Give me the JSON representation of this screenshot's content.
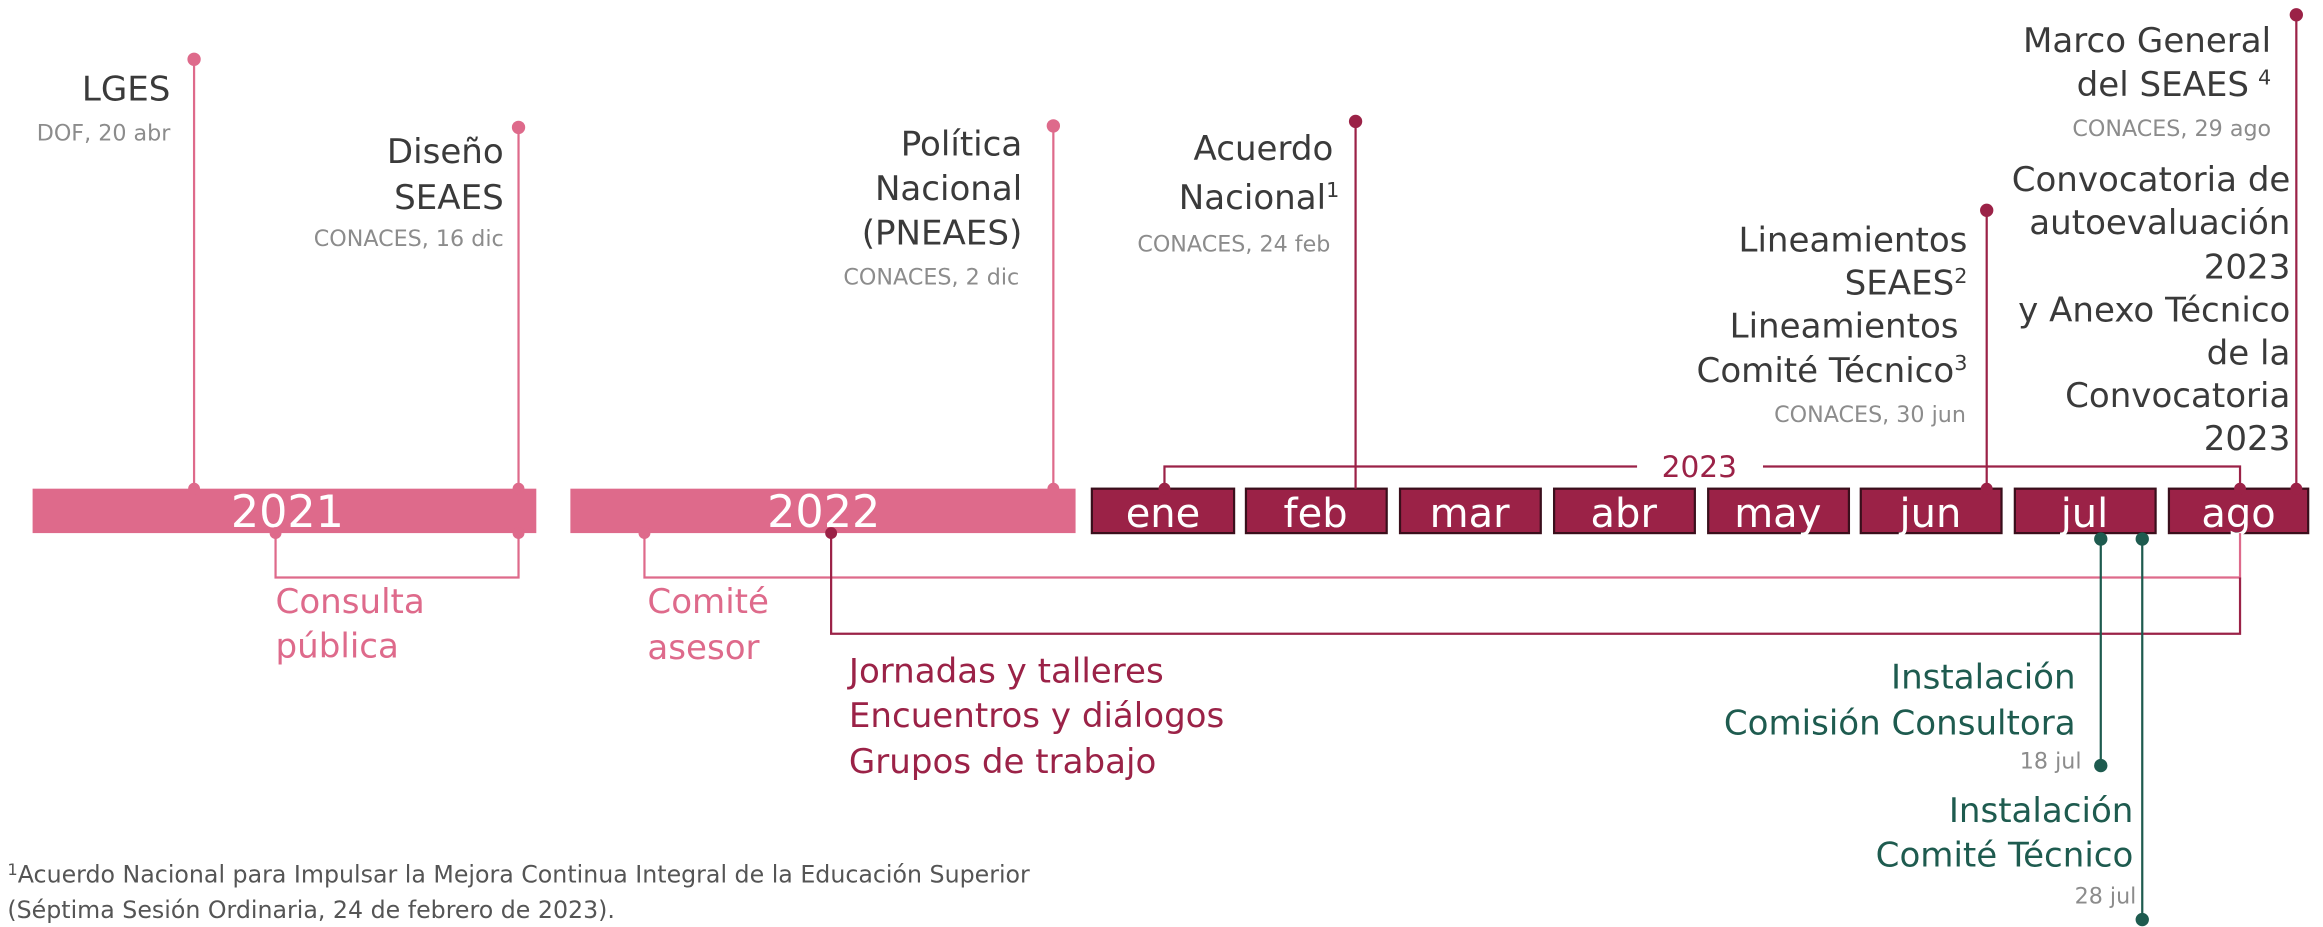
{
  "years": [
    "2021",
    "2022"
  ],
  "year_2023": "2023",
  "months": [
    "ene",
    "feb",
    "mar",
    "abr",
    "may",
    "jun",
    "jul",
    "ago"
  ],
  "events": [
    {
      "title": [
        {
          "text": "LGES"
        }
      ],
      "source": "DOF, 20 abr"
    },
    {
      "title": [
        {
          "text": "Diseño"
        },
        {
          "text": "SEAES"
        }
      ],
      "source": "CONACES, 16 dic"
    },
    {
      "title": [
        {
          "text": "Política"
        },
        {
          "text": "Nacional"
        },
        {
          "text": "(PNEAES)"
        }
      ],
      "source": "CONACES, 2 dic"
    },
    {
      "title": [
        {
          "text": "Acuerdo"
        },
        {
          "text": "Nacional",
          "note": "1"
        }
      ],
      "source": "CONACES, 24 feb"
    },
    {
      "title": [
        {
          "text": "Lineamientos"
        },
        {
          "text": "SEAES",
          "note": "2"
        },
        {
          "text": "Lineamientos"
        },
        {
          "text": "Comité Técnico",
          "note": "3"
        }
      ],
      "source": "CONACES, 30 jun"
    },
    {
      "title": [
        {
          "text": "Marco General"
        },
        {
          "text": "del SEAES",
          "note": "4"
        }
      ],
      "source": "CONACES, 29 ago",
      "detail": [
        "Convocatoria de",
        "autoevaluación",
        "2023",
        "y Anexo Técnico",
        "de la",
        "Convocatoria",
        "2023"
      ]
    }
  ],
  "processes": [
    {
      "label": [
        "Consulta",
        "pública"
      ]
    },
    {
      "label": [
        "Comité",
        "asesor"
      ]
    },
    {
      "label": [
        "Jornadas y talleres",
        "Encuentros y diálogos",
        "Grupos de trabajo"
      ]
    }
  ],
  "installations": [
    {
      "label": [
        "Instalación",
        "Comisión Consultora"
      ],
      "date": "18 jul"
    },
    {
      "label": [
        "Instalación",
        "Comité Técnico"
      ],
      "date": "28 jul"
    }
  ],
  "footnote": {
    "note": "1",
    "lines": [
      "Acuerdo Nacional para Impulsar la Mejora Continua Integral de la Educación Superior",
      "(Séptima Sesión Ordinaria, 24 de febrero de 2023)."
    ]
  }
}
